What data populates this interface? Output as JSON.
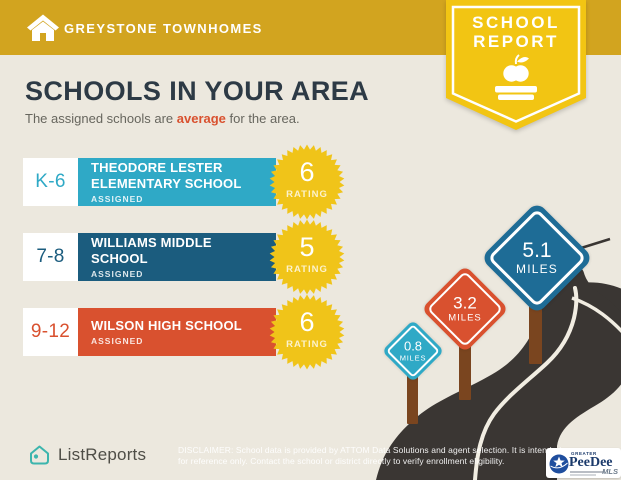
{
  "header": {
    "property_name": "GREYSTONE TOWNHOMES",
    "badge_line1": "SCHOOL",
    "badge_line2": "REPORT"
  },
  "main": {
    "title": "SCHOOLS IN YOUR AREA",
    "subtitle_prefix": "The assigned schools are ",
    "subtitle_highlight": "average",
    "subtitle_suffix": " for the area.",
    "rating_label": "RATING",
    "schools": [
      {
        "grades": "K-6",
        "name": "THEODORE LESTER ELEMENTARY SCHOOL",
        "status": "ASSIGNED",
        "rating": "6",
        "color": "#2FA9C6"
      },
      {
        "grades": "7-8",
        "name": "WILLIAMS MIDDLE SCHOOL",
        "status": "ASSIGNED",
        "rating": "5",
        "color": "#1B5C7E"
      },
      {
        "grades": "9-12",
        "name": "WILSON HIGH SCHOOL",
        "status": "ASSIGNED",
        "rating": "6",
        "color": "#D9512F"
      }
    ]
  },
  "signs": [
    {
      "distance": "0.8",
      "unit": "MILES",
      "color": "#2FA9C6"
    },
    {
      "distance": "3.2",
      "unit": "MILES",
      "color": "#D9512F"
    },
    {
      "distance": "5.1",
      "unit": "MILES",
      "color": "#1E6C96"
    }
  ],
  "footer": {
    "brand": "ListReports",
    "disclaimer_line1": "DISCLAIMER: School data is provided by ATTOM Data Solutions and agent selection. It is intended",
    "disclaimer_line2": "for reference only. Contact the school or district directly to verify enrollment eligibility.",
    "mls_top": "GREATER",
    "mls_name": "PeeDee",
    "mls_suffix": "MLS"
  },
  "colors": {
    "header_gold": "#D2A41F",
    "ribbon_yellow": "#F2C513",
    "starburst_yellow": "#F0C419",
    "background_beige": "#ECE8DE",
    "road_dark": "#3A3633",
    "post_brown": "#7A451F",
    "accent_teal": "#2FA9C6",
    "accent_dark_blue": "#1B5C7E",
    "accent_orange": "#D9512F",
    "sign_blue": "#1E6C96",
    "brand_teal": "#3CB5AD",
    "title_navy": "#2D3A45",
    "mls_navy": "#1B3A6B"
  }
}
